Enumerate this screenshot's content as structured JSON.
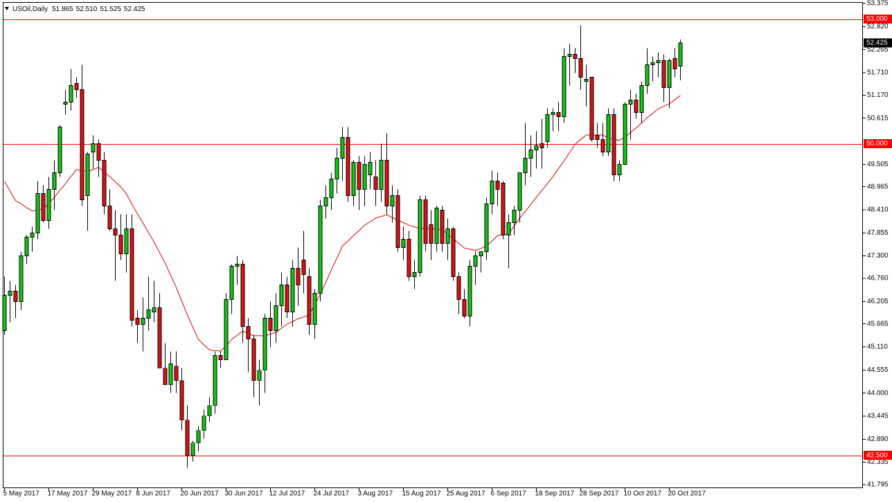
{
  "chart_data": {
    "type": "candlestick",
    "title": "USOil,Daily",
    "header_values": [
      "51.865",
      "52.510",
      "51.525",
      "52.425"
    ],
    "categories": [
      "5 May 2017",
      null,
      null,
      null,
      null,
      null,
      null,
      null,
      "17 May 2017",
      null,
      null,
      null,
      null,
      null,
      null,
      null,
      "29 May 2017",
      null,
      null,
      null,
      null,
      null,
      null,
      null,
      "8 Jun 2017",
      null,
      null,
      null,
      null,
      null,
      null,
      null,
      "20 Jun 2017",
      null,
      null,
      null,
      null,
      null,
      null,
      null,
      "30 Jun 2017",
      null,
      null,
      null,
      null,
      null,
      null,
      null,
      "12 Jul 2017",
      null,
      null,
      null,
      null,
      null,
      null,
      null,
      "24 Jul 2017",
      null,
      null,
      null,
      null,
      null,
      null,
      null,
      "3 Aug 2017",
      null,
      null,
      null,
      null,
      null,
      null,
      null,
      "15 Aug 2017",
      null,
      null,
      null,
      null,
      null,
      null,
      null,
      "25 Aug 2017",
      null,
      null,
      null,
      null,
      null,
      null,
      null,
      "6 Sep 2017",
      null,
      null,
      null,
      null,
      null,
      null,
      null,
      "18 Sep 2017",
      null,
      null,
      null,
      null,
      null,
      null,
      null,
      "28 Sep 2017",
      null,
      null,
      null,
      null,
      null,
      null,
      null,
      "10 Oct 2017",
      null,
      null,
      null,
      null,
      null,
      null,
      null,
      "20 Oct 2017",
      null,
      null
    ],
    "open": [
      45.5,
      46.35,
      46.45,
      46.2,
      47.3,
      47.75,
      47.85,
      48.8,
      48.15,
      48.9,
      49.3,
      50.95,
      51.0,
      51.45,
      51.3,
      48.75,
      49.8,
      50.0,
      49.6,
      48.5,
      47.95,
      47.8,
      47.35,
      47.95,
      45.8,
      45.65,
      45.8,
      45.95,
      46.05,
      44.6,
      44.2,
      44.65,
      44.3,
      43.35,
      42.5,
      42.8,
      43.1,
      43.45,
      43.7,
      44.9,
      44.8,
      46.25,
      47.05,
      47.1,
      45.6,
      45.3,
      44.3,
      44.55,
      45.8,
      45.5,
      46.1,
      46.6,
      45.95,
      47.0,
      47.2,
      46.8,
      45.65,
      46.4,
      48.5,
      48.7,
      49.15,
      49.65,
      50.15,
      48.75,
      49.55,
      48.9,
      49.25,
      49.2,
      48.9,
      49.6,
      48.5,
      48.75,
      47.5,
      47.7,
      46.8,
      46.9,
      48.65,
      48.05,
      47.6,
      48.4,
      47.6,
      47.95,
      46.8,
      46.25,
      45.85,
      47.05,
      47.3,
      47.4,
      48.55,
      49.1,
      49.05,
      47.8,
      48.1,
      48.4,
      49.3,
      49.65,
      49.85,
      50.0,
      50.05,
      50.7,
      50.75,
      50.65,
      52.1,
      52.15,
      52.05,
      51.5,
      51.6,
      50.2,
      50.1,
      49.8,
      50.7,
      49.25,
      49.5,
      50.95,
      51.05,
      50.75,
      51.4,
      51.9,
      51.95,
      52.0,
      51.35,
      52.05,
      51.865
    ],
    "high": [
      46.8,
      46.7,
      46.6,
      47.4,
      47.8,
      48.0,
      49.1,
      49.0,
      49.2,
      49.6,
      50.45,
      51.3,
      51.8,
      51.6,
      51.9,
      49.8,
      50.2,
      50.1,
      49.8,
      48.9,
      48.4,
      48.3,
      48.3,
      48.3,
      46.0,
      46.3,
      46.8,
      46.7,
      46.4,
      45.2,
      45.0,
      45.0,
      44.6,
      43.7,
      42.85,
      43.2,
      43.6,
      43.9,
      45.0,
      45.0,
      46.4,
      47.1,
      47.3,
      47.2,
      45.8,
      45.4,
      44.8,
      45.9,
      46.2,
      46.4,
      46.9,
      46.8,
      47.2,
      47.5,
      47.9,
      47.0,
      46.5,
      48.65,
      49.0,
      49.3,
      49.9,
      50.4,
      50.4,
      49.6,
      49.7,
      49.7,
      49.8,
      49.6,
      50.0,
      50.25,
      49.0,
      48.9,
      48.0,
      47.9,
      47.2,
      48.75,
      48.75,
      48.4,
      48.5,
      48.5,
      48.2,
      48.0,
      46.9,
      46.5,
      47.2,
      47.4,
      47.4,
      48.7,
      49.35,
      49.3,
      49.1,
      48.3,
      48.5,
      49.3,
      50.5,
      50.2,
      50.3,
      50.6,
      50.85,
      50.85,
      51.0,
      52.3,
      52.4,
      52.3,
      52.85,
      51.9,
      51.6,
      50.5,
      50.5,
      50.85,
      50.85,
      49.6,
      51.0,
      51.3,
      51.2,
      51.5,
      52.3,
      52.1,
      52.2,
      52.15,
      52.05,
      52.3,
      52.51
    ],
    "low": [
      45.4,
      45.7,
      45.8,
      46.0,
      47.1,
      47.4,
      47.7,
      48.1,
      47.95,
      48.4,
      49.2,
      50.7,
      50.8,
      51.1,
      48.5,
      47.9,
      49.4,
      49.2,
      48.3,
      47.9,
      46.7,
      47.2,
      46.9,
      45.6,
      45.2,
      45.0,
      45.5,
      45.7,
      44.6,
      44.2,
      44.0,
      44.0,
      43.1,
      42.2,
      42.35,
      42.6,
      42.9,
      43.3,
      43.5,
      44.6,
      44.8,
      45.9,
      46.6,
      45.2,
      44.5,
      43.9,
      43.7,
      44.0,
      45.1,
      45.2,
      45.6,
      45.8,
      45.6,
      46.1,
      46.4,
      45.4,
      45.3,
      46.2,
      48.2,
      48.4,
      48.8,
      49.1,
      48.6,
      48.5,
      48.4,
      48.5,
      48.9,
      48.5,
      48.6,
      48.3,
      48.1,
      47.4,
      47.2,
      46.7,
      46.5,
      46.8,
      47.4,
      47.2,
      47.4,
      47.4,
      47.2,
      46.7,
      45.9,
      45.8,
      45.6,
      46.6,
      46.9,
      47.2,
      48.3,
      48.5,
      47.7,
      47.0,
      47.8,
      48.1,
      49.0,
      49.2,
      49.4,
      49.4,
      49.9,
      50.3,
      50.3,
      50.5,
      51.4,
      51.7,
      51.3,
      50.9,
      50.05,
      49.9,
      49.7,
      49.7,
      49.1,
      49.1,
      49.5,
      50.1,
      50.6,
      50.5,
      51.2,
      51.5,
      51.6,
      51.0,
      50.85,
      51.6,
      51.525
    ],
    "close": [
      46.35,
      46.45,
      46.2,
      47.3,
      47.75,
      47.85,
      48.8,
      48.15,
      48.9,
      49.3,
      50.4,
      51.0,
      51.4,
      51.3,
      48.65,
      49.75,
      50.0,
      49.6,
      48.5,
      47.95,
      47.8,
      47.35,
      47.95,
      45.75,
      45.65,
      45.8,
      46.0,
      46.05,
      44.6,
      44.2,
      44.7,
      44.3,
      43.35,
      42.5,
      42.8,
      43.1,
      43.45,
      43.7,
      44.9,
      44.8,
      46.25,
      47.05,
      47.1,
      45.6,
      45.3,
      44.3,
      44.55,
      45.8,
      45.5,
      46.1,
      46.6,
      45.95,
      47.0,
      46.6,
      46.85,
      45.65,
      46.4,
      48.5,
      48.7,
      49.15,
      49.65,
      50.15,
      48.75,
      49.55,
      48.9,
      49.5,
      49.55,
      48.9,
      49.6,
      48.5,
      48.75,
      47.5,
      47.7,
      46.8,
      46.9,
      48.65,
      47.6,
      47.6,
      48.45,
      47.6,
      47.95,
      46.8,
      46.25,
      45.85,
      47.05,
      47.3,
      47.4,
      48.55,
      49.1,
      48.9,
      47.8,
      48.1,
      48.4,
      49.3,
      49.65,
      49.85,
      49.95,
      49.9,
      50.7,
      50.75,
      50.65,
      52.1,
      52.15,
      52.05,
      51.6,
      51.55,
      50.1,
      50.1,
      49.8,
      50.7,
      49.25,
      49.5,
      50.95,
      51.05,
      50.75,
      51.4,
      51.9,
      51.95,
      52.0,
      51.35,
      52.0,
      51.8,
      52.425
    ],
    "colors": {
      "up": "#14c414",
      "down": "#dd1111"
    },
    "ma": {
      "color": "#e00000",
      "values": [
        49.09,
        48.86,
        48.63,
        48.55,
        48.46,
        48.38,
        48.4,
        48.43,
        48.57,
        48.71,
        48.88,
        49.04,
        49.21,
        49.38,
        49.35,
        49.33,
        49.38,
        49.43,
        49.32,
        49.21,
        49.08,
        48.96,
        48.79,
        48.54,
        48.31,
        48.09,
        47.86,
        47.63,
        47.38,
        47.13,
        46.83,
        46.54,
        46.21,
        45.88,
        45.58,
        45.29,
        45.16,
        45.04,
        45.02,
        45.01,
        45.13,
        45.29,
        45.39,
        45.49,
        45.43,
        45.38,
        45.38,
        45.38,
        45.42,
        45.46,
        45.56,
        45.66,
        45.72,
        45.79,
        45.83,
        45.88,
        46.13,
        46.38,
        46.67,
        46.96,
        47.25,
        47.54,
        47.66,
        47.79,
        47.91,
        48.04,
        48.12,
        48.21,
        48.25,
        48.29,
        48.22,
        48.16,
        48.1,
        48.04,
        48.0,
        47.96,
        47.96,
        47.96,
        47.94,
        47.93,
        47.82,
        47.71,
        47.6,
        47.49,
        47.46,
        47.43,
        47.48,
        47.54,
        47.66,
        47.79,
        47.81,
        47.83,
        48.02,
        48.21,
        48.37,
        48.54,
        48.71,
        48.88,
        49.04,
        49.21,
        49.4,
        49.59,
        49.79,
        49.99,
        50.1,
        50.21,
        50.21,
        50.21,
        50.21,
        50.13,
        50.1,
        50.08,
        50.16,
        50.27,
        50.38,
        50.5,
        50.63,
        50.73,
        50.84,
        50.9,
        50.96,
        51.06,
        51.16
      ]
    },
    "levels": [
      {
        "value": 53,
        "label": "53.000"
      },
      {
        "value": 50,
        "label": "50.000"
      },
      {
        "value": 42.5,
        "label": "42.500"
      }
    ],
    "level_color": "#ff0000",
    "ylim": [
      41.795,
      53.375
    ],
    "yticks": [
      53.375,
      {
        "value": 52.82,
        "label": "52.820"
      },
      52.265,
      {
        "value": 51.71,
        "label": "51.710"
      },
      {
        "value": 51.17,
        "label": "51.170"
      },
      50.615,
      49.505,
      48.965,
      {
        "value": 48.41,
        "label": "48.410"
      },
      47.855,
      {
        "value": 47.3,
        "label": "47.300"
      },
      {
        "value": 46.76,
        "label": "46.760"
      },
      46.205,
      45.665,
      {
        "value": 45.11,
        "label": "45.110"
      },
      44.555,
      {
        "value": 44,
        "label": "44.000"
      },
      43.445,
      {
        "value": 42.89,
        "label": "42.890"
      },
      42.335,
      41.795
    ]
  }
}
